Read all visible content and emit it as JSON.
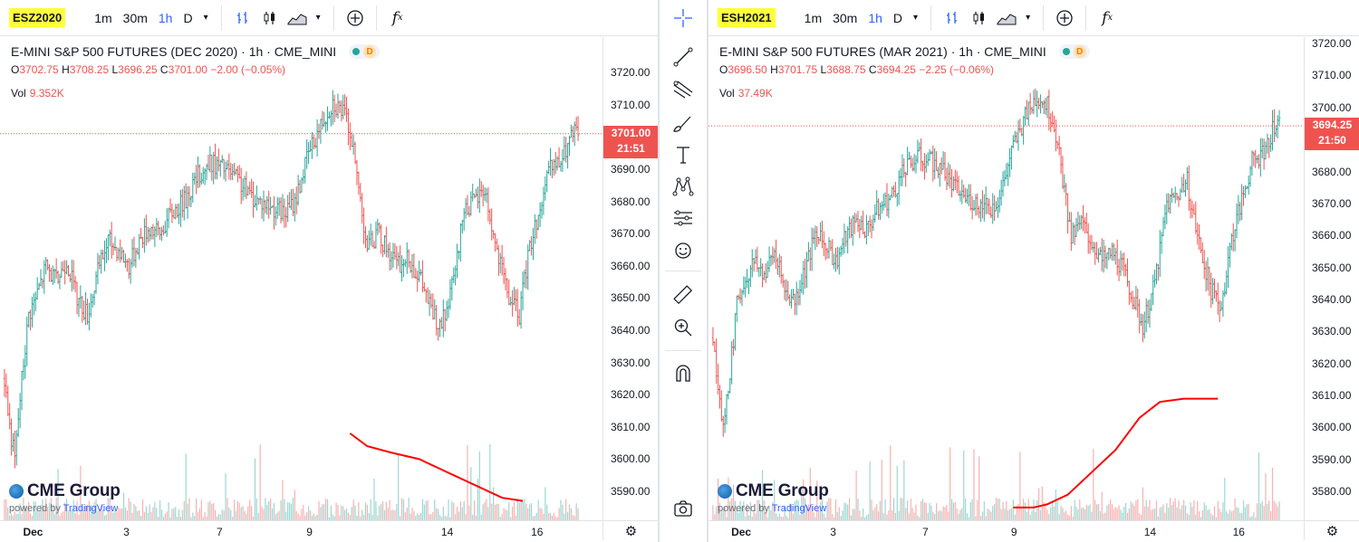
{
  "left": {
    "symbol": "ESZ2020",
    "timeframes": [
      "1m",
      "30m",
      "1h",
      "D"
    ],
    "active_timeframe": "1h",
    "title": "E-MINI S&P 500 FUTURES (DEC 2020) · 1h · CME_MINI",
    "badge_letter": "D",
    "ohlc": {
      "o_label": "O",
      "o": "3702.75",
      "h_label": "H",
      "h": "3708.25",
      "l_label": "L",
      "l": "3696.25",
      "c_label": "C",
      "c": "3701.00",
      "chg": "−2.00 (−0.05%)"
    },
    "vol_label": "Vol",
    "vol": "9.352K",
    "last_price": "3701.00",
    "countdown": "21:51",
    "brand": "CME Group",
    "powered_by": "powered by",
    "powered_tv": "TradingView"
  },
  "right": {
    "symbol": "ESH2021",
    "timeframes": [
      "1m",
      "30m",
      "1h",
      "D"
    ],
    "active_timeframe": "1h",
    "title": "E-MINI S&P 500 FUTURES (MAR 2021) · 1h · CME_MINI",
    "badge_letter": "D",
    "ohlc": {
      "o_label": "O",
      "o": "3696.50",
      "h_label": "H",
      "h": "3701.75",
      "l_label": "L",
      "l": "3688.75",
      "c_label": "C",
      "c": "3694.25",
      "chg": "−2.25 (−0.06%)"
    },
    "vol_label": "Vol",
    "vol": "37.49K",
    "last_price": "3694.25",
    "countdown": "21:50",
    "brand": "CME Group",
    "powered_by": "powered by",
    "powered_tv": "TradingView"
  },
  "drawing_tools": [
    "crosshair-icon",
    "trend-line-icon",
    "fib-icon",
    "brush-icon",
    "text-icon",
    "pattern-icon",
    "forecast-icon",
    "emoji-icon",
    "ruler-icon",
    "zoom-in-icon",
    "magnet-icon",
    "camera-icon"
  ],
  "colors": {
    "up": "#26a69a",
    "down": "#ef5350",
    "accent": "#2962ff",
    "annotation": "#ff0000",
    "symbol_highlight": "#ffff3b"
  },
  "chart_data": [
    {
      "type": "candlestick",
      "title": "E-MINI S&P 500 FUTURES (DEC 2020) · 1h · CME_MINI",
      "x_ticks": [
        "Dec",
        "3",
        "7",
        "9",
        "14",
        "16"
      ],
      "y_ticks": [
        3590,
        3600,
        3610,
        3620,
        3630,
        3640,
        3650,
        3660,
        3670,
        3680,
        3690,
        3700,
        3710,
        3720
      ],
      "ylim": [
        3581,
        3731
      ],
      "last_price": 3701.0,
      "price_path": [
        [
          0,
          3625
        ],
        [
          3,
          3610
        ],
        [
          6,
          3600
        ],
        [
          10,
          3625
        ],
        [
          14,
          3645
        ],
        [
          18,
          3650
        ],
        [
          24,
          3660
        ],
        [
          30,
          3655
        ],
        [
          36,
          3662
        ],
        [
          42,
          3650
        ],
        [
          48,
          3645
        ],
        [
          54,
          3658
        ],
        [
          60,
          3668
        ],
        [
          66,
          3665
        ],
        [
          72,
          3660
        ],
        [
          78,
          3668
        ],
        [
          84,
          3672
        ],
        [
          90,
          3670
        ],
        [
          96,
          3676
        ],
        [
          104,
          3680
        ],
        [
          112,
          3688
        ],
        [
          120,
          3692
        ],
        [
          128,
          3690
        ],
        [
          136,
          3686
        ],
        [
          142,
          3682
        ],
        [
          148,
          3680
        ],
        [
          156,
          3678
        ],
        [
          162,
          3676
        ],
        [
          168,
          3680
        ],
        [
          176,
          3695
        ],
        [
          184,
          3705
        ],
        [
          190,
          3711
        ],
        [
          196,
          3708
        ],
        [
          200,
          3702
        ],
        [
          204,
          3688
        ],
        [
          210,
          3666
        ],
        [
          216,
          3670
        ],
        [
          222,
          3665
        ],
        [
          228,
          3660
        ],
        [
          234,
          3662
        ],
        [
          240,
          3657
        ],
        [
          246,
          3648
        ],
        [
          252,
          3640
        ],
        [
          258,
          3650
        ],
        [
          262,
          3662
        ],
        [
          266,
          3678
        ],
        [
          272,
          3680
        ],
        [
          278,
          3684
        ],
        [
          282,
          3672
        ],
        [
          286,
          3662
        ],
        [
          292,
          3650
        ],
        [
          298,
          3645
        ],
        [
          304,
          3666
        ],
        [
          310,
          3678
        ],
        [
          316,
          3690
        ],
        [
          322,
          3692
        ],
        [
          328,
          3700
        ],
        [
          332,
          3702
        ]
      ],
      "x_label_index": {
        "Dec": 16,
        "3": 74,
        "7": 128,
        "9": 180,
        "14": 258,
        "16": 310
      },
      "volume_max_label": "9.352K",
      "annotation_line": [
        [
          200,
          3608
        ],
        [
          210,
          3604
        ],
        [
          224,
          3602
        ],
        [
          240,
          3600
        ],
        [
          256,
          3596
        ],
        [
          272,
          3592
        ],
        [
          288,
          3588
        ],
        [
          300,
          3587
        ]
      ]
    },
    {
      "type": "candlestick",
      "title": "E-MINI S&P 500 FUTURES (MAR 2021) · 1h · CME_MINI",
      "x_ticks": [
        "Dec",
        "3",
        "7",
        "9",
        "14",
        "16"
      ],
      "y_ticks": [
        3580,
        3590,
        3600,
        3610,
        3620,
        3630,
        3640,
        3650,
        3660,
        3670,
        3680,
        3690,
        3700,
        3710,
        3720
      ],
      "ylim": [
        3571,
        3722
      ],
      "last_price": 3694.25,
      "price_path": [
        [
          0,
          3628
        ],
        [
          3,
          3612
        ],
        [
          6,
          3600
        ],
        [
          10,
          3618
        ],
        [
          14,
          3638
        ],
        [
          18,
          3645
        ],
        [
          24,
          3652
        ],
        [
          30,
          3648
        ],
        [
          36,
          3655
        ],
        [
          42,
          3643
        ],
        [
          48,
          3640
        ],
        [
          54,
          3650
        ],
        [
          60,
          3660
        ],
        [
          66,
          3657
        ],
        [
          72,
          3652
        ],
        [
          78,
          3660
        ],
        [
          84,
          3665
        ],
        [
          90,
          3662
        ],
        [
          96,
          3668
        ],
        [
          104,
          3672
        ],
        [
          112,
          3680
        ],
        [
          120,
          3685
        ],
        [
          128,
          3683
        ],
        [
          136,
          3679
        ],
        [
          142,
          3675
        ],
        [
          148,
          3672
        ],
        [
          156,
          3670
        ],
        [
          162,
          3668
        ],
        [
          168,
          3672
        ],
        [
          176,
          3688
        ],
        [
          184,
          3698
        ],
        [
          190,
          3704
        ],
        [
          196,
          3701
        ],
        [
          200,
          3695
        ],
        [
          204,
          3681
        ],
        [
          210,
          3659
        ],
        [
          216,
          3664
        ],
        [
          222,
          3658
        ],
        [
          228,
          3652
        ],
        [
          234,
          3655
        ],
        [
          240,
          3650
        ],
        [
          246,
          3641
        ],
        [
          252,
          3632
        ],
        [
          258,
          3643
        ],
        [
          262,
          3655
        ],
        [
          266,
          3670
        ],
        [
          272,
          3673
        ],
        [
          278,
          3677
        ],
        [
          282,
          3665
        ],
        [
          286,
          3655
        ],
        [
          292,
          3643
        ],
        [
          298,
          3638
        ],
        [
          304,
          3659
        ],
        [
          310,
          3671
        ],
        [
          316,
          3683
        ],
        [
          322,
          3685
        ],
        [
          328,
          3693
        ],
        [
          332,
          3694
        ]
      ],
      "x_label_index": {
        "Dec": 16,
        "3": 74,
        "7": 128,
        "9": 180,
        "14": 258,
        "16": 310
      },
      "volume_max_label": "37.49K",
      "annotation_line": [
        [
          176,
          3575
        ],
        [
          188,
          3575
        ],
        [
          196,
          3576
        ],
        [
          208,
          3579
        ],
        [
          222,
          3586
        ],
        [
          236,
          3593
        ],
        [
          250,
          3603
        ],
        [
          262,
          3608
        ],
        [
          276,
          3609
        ],
        [
          296,
          3609
        ]
      ]
    }
  ]
}
